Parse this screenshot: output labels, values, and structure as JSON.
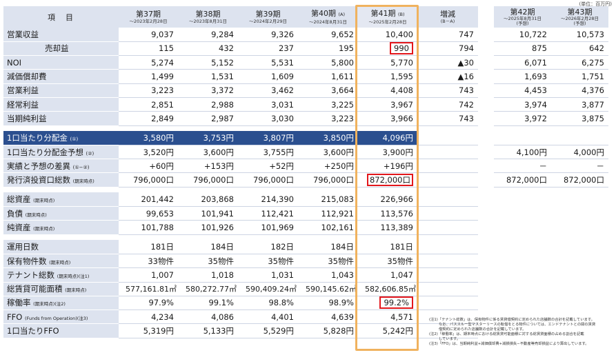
{
  "unit_label": "(単位：百万円)",
  "header": {
    "item_label": "項　目",
    "periods": [
      {
        "label": "第37期",
        "date": "～2023年2月28日"
      },
      {
        "label": "第38期",
        "date": "～2023年8月31日"
      },
      {
        "label": "第39期",
        "date": "～2024年2月29日"
      },
      {
        "label": "第40期",
        "suffix": "(A)",
        "date": "～2024年8月31日"
      },
      {
        "label": "第41期",
        "suffix": "(B)",
        "date": "～2025年2月28日"
      }
    ],
    "change_label": "増減",
    "change_sub": "(B－A)",
    "forecast": [
      {
        "label": "第42期",
        "date": "～2025年8月31日",
        "note": "(予想)"
      },
      {
        "label": "第43期",
        "date": "～2026年2月28日",
        "note": "(予想)"
      }
    ]
  },
  "section1": [
    {
      "label": "営業収益",
      "v": [
        "9,037",
        "9,284",
        "9,326",
        "9,652",
        "10,400"
      ],
      "change": "747",
      "f": [
        "10,722",
        "10,573"
      ]
    },
    {
      "label": "売却益",
      "v": [
        "115",
        "432",
        "237",
        "195",
        "990"
      ],
      "change": "794",
      "f": [
        "875",
        "642"
      ]
    },
    {
      "label": "NOI",
      "v": [
        "5,274",
        "5,152",
        "5,531",
        "5,800",
        "5,770"
      ],
      "change": "▲30",
      "f": [
        "6,071",
        "6,275"
      ]
    },
    {
      "label": "減価償却費",
      "v": [
        "1,499",
        "1,531",
        "1,609",
        "1,611",
        "1,595"
      ],
      "change": "▲16",
      "f": [
        "1,693",
        "1,751"
      ]
    },
    {
      "label": "営業利益",
      "v": [
        "3,223",
        "3,372",
        "3,462",
        "3,664",
        "4,408"
      ],
      "change": "743",
      "f": [
        "4,453",
        "4,376"
      ]
    },
    {
      "label": "経常利益",
      "v": [
        "2,851",
        "2,988",
        "3,031",
        "3,225",
        "3,967"
      ],
      "change": "742",
      "f": [
        "3,974",
        "3,877"
      ]
    },
    {
      "label": "当期純利益",
      "v": [
        "2,849",
        "2,987",
        "3,030",
        "3,223",
        "3,966"
      ],
      "change": "743",
      "f": [
        "3,972",
        "3,875"
      ]
    }
  ],
  "section2": [
    {
      "label": "1口当たり分配金",
      "note": "(①)",
      "v": [
        "3,580円",
        "3,753円",
        "3,807円",
        "3,850円",
        "4,096円"
      ],
      "f": [
        "",
        ""
      ]
    },
    {
      "label": "1口当たり分配金予想",
      "note": "(②)",
      "v": [
        "3,520円",
        "3,600円",
        "3,755円",
        "3,600円",
        "3,900円"
      ],
      "f": [
        "4,100円",
        "4,000円"
      ]
    },
    {
      "label": "実績と予想の差異",
      "note": "(①−②)",
      "v": [
        "+60円",
        "+153円",
        "+52円",
        "+250円",
        "+196円"
      ],
      "f": [
        "－",
        "－"
      ]
    },
    {
      "label": "発行済投資口総数",
      "note": "(期末時点)",
      "v": [
        "796,000口",
        "796,000口",
        "796,000口",
        "796,000口",
        "872,000口"
      ],
      "f": [
        "872,000口",
        "872,000口"
      ]
    }
  ],
  "section3": [
    {
      "label": "総資産",
      "note": "(期末時点)",
      "v": [
        "201,442",
        "203,868",
        "214,390",
        "215,083",
        "226,966"
      ]
    },
    {
      "label": "負債",
      "note": "(期末時点)",
      "v": [
        "99,653",
        "101,941",
        "112,421",
        "112,921",
        "113,576"
      ]
    },
    {
      "label": "純資産",
      "note": "(期末時点)",
      "v": [
        "101,788",
        "101,926",
        "101,969",
        "102,161",
        "113,389"
      ]
    }
  ],
  "section4": [
    {
      "label": "運用日数",
      "note": "",
      "v": [
        "181日",
        "184日",
        "182日",
        "184日",
        "181日"
      ]
    },
    {
      "label": "保有物件数",
      "note": "(期末時点)",
      "v": [
        "33物件",
        "35物件",
        "35物件",
        "35物件",
        "35物件"
      ]
    },
    {
      "label": "テナント総数",
      "note": "(期末時点)(注1)",
      "v": [
        "1,007",
        "1,018",
        "1,031",
        "1,043",
        "1,047"
      ]
    },
    {
      "label": "総賃貸可能面積",
      "note": "(期末時点)",
      "v": [
        "577,161.81㎡",
        "580,272.77㎡",
        "590,409.24㎡",
        "590,145.62㎡",
        "582,606.85㎡"
      ]
    },
    {
      "label": "稼働率",
      "note": "(期末時点)(注2)",
      "v": [
        "97.9%",
        "99.1%",
        "98.8%",
        "98.9%",
        "99.2%"
      ]
    },
    {
      "label": "FFO",
      "note": "(Funds from Operation)(注3)",
      "v": [
        "4,234",
        "4,086",
        "4,401",
        "4,639",
        "4,571"
      ]
    },
    {
      "label": "1口当たりFFO",
      "note": "",
      "v": [
        "5,319円",
        "5,133円",
        "5,529円",
        "5,828円",
        "5,242円"
      ]
    }
  ],
  "notes": [
    "(注1)「テナント総数」は、保有物件に係る賃貸借契約に定められた店舗数の合計を記載しています。",
    "なお、パススルー型マスターリースの転借をとる物件については、エンドテナントとの間の賃貸",
    "借契約に定められた店舗数の合計を記載しています。",
    "(注2)「稼働率」は、期末時点における総賃貸可能面積に対する総賃貸面積の占める割合を記載",
    "しています。",
    "(注3)「FFO」は、当期純利益+減価償却費+減損損失−不動産等売却損益により算出しています。"
  ]
}
